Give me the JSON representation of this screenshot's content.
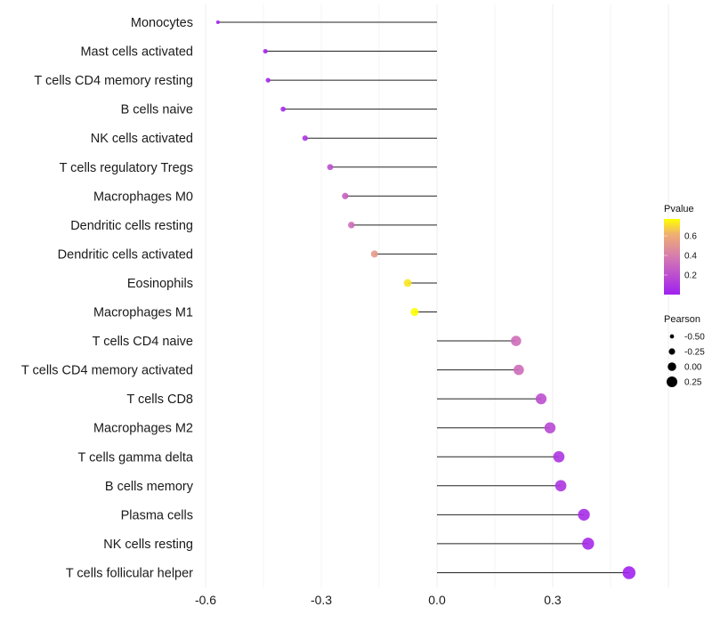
{
  "chart_data": {
    "type": "lollipop",
    "title": "",
    "xlabel": "",
    "ylabel": "",
    "xlim": [
      -0.62,
      0.52
    ],
    "x_ticks": [
      -0.6,
      -0.3,
      0.0,
      0.3
    ],
    "x_tick_labels": [
      "-0.6",
      "-0.3",
      "0.0",
      "0.3"
    ],
    "grid": true,
    "categories": [
      "Monocytes",
      "Mast cells activated",
      "T cells CD4 memory resting",
      "B cells naive",
      "NK cells activated",
      "T cells regulatory  Tregs",
      "Macrophages M0",
      "Dendritic cells resting",
      "Dendritic cells activated",
      "Eosinophils",
      "Macrophages M1",
      "T cells CD4 naive",
      "T cells CD4 memory activated",
      "T cells CD8",
      "Macrophages M2",
      "T cells gamma delta",
      "B cells memory",
      "Plasma cells",
      "NK cells resting",
      "T cells follicular helper"
    ],
    "pearson": [
      -0.568,
      -0.445,
      -0.438,
      -0.399,
      -0.342,
      -0.277,
      -0.238,
      -0.222,
      -0.162,
      -0.076,
      -0.058,
      0.205,
      0.212,
      0.27,
      0.293,
      0.316,
      0.321,
      0.381,
      0.392,
      0.498
    ],
    "pvalue": [
      0.01,
      0.02,
      0.03,
      0.05,
      0.09,
      0.2,
      0.28,
      0.32,
      0.52,
      0.72,
      0.77,
      0.33,
      0.32,
      0.2,
      0.17,
      0.09,
      0.09,
      0.05,
      0.04,
      0.01
    ],
    "legend_color": {
      "title": "Pvalue",
      "ticks": [
        0.2,
        0.4,
        0.6
      ],
      "tick_labels": [
        "0.2",
        "0.4",
        "0.6"
      ],
      "range": [
        0,
        0.77
      ],
      "low_color": "#a020f0",
      "mid_color": "#d67ab0",
      "high_color": "#ffff00"
    },
    "legend_size": {
      "title": "Pearson",
      "values": [
        -0.5,
        -0.25,
        0.0,
        0.25
      ],
      "labels": [
        "-0.50",
        "-0.25",
        "0.00",
        "0.25"
      ]
    },
    "legend_placement": "right"
  }
}
